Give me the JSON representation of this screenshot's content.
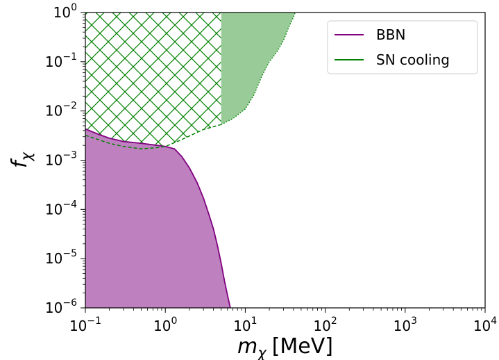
{
  "chart_data": {
    "type": "area",
    "x_scale": "log",
    "y_scale": "log",
    "xlim": [
      0.1,
      10000
    ],
    "ylim": [
      1e-06,
      1
    ],
    "xlabel": {
      "symbol": "m",
      "subscript": "χ",
      "unit": "[MeV]"
    },
    "ylabel": {
      "symbol": "f",
      "subscript": "χ"
    },
    "x_ticks": [
      {
        "value": 0.1,
        "base": "10",
        "exp": "−1"
      },
      {
        "value": 1,
        "base": "10",
        "exp": "0"
      },
      {
        "value": 10,
        "base": "10",
        "exp": "1"
      },
      {
        "value": 100,
        "base": "10",
        "exp": "2"
      },
      {
        "value": 1000,
        "base": "10",
        "exp": "3"
      },
      {
        "value": 10000,
        "base": "10",
        "exp": "4"
      }
    ],
    "y_ticks": [
      {
        "value": 1e-06,
        "base": "10",
        "exp": "−6"
      },
      {
        "value": 1e-05,
        "base": "10",
        "exp": "−5"
      },
      {
        "value": 0.0001,
        "base": "10",
        "exp": "−4"
      },
      {
        "value": 0.001,
        "base": "10",
        "exp": "−3"
      },
      {
        "value": 0.01,
        "base": "10",
        "exp": "−2"
      },
      {
        "value": 0.1,
        "base": "10",
        "exp": "−1"
      },
      {
        "value": 1,
        "base": "10",
        "exp": "0"
      }
    ],
    "grid": false,
    "legend_position": "top-right",
    "series": [
      {
        "name": "BBN",
        "color": "#800080",
        "fill_color": "#bf80bf",
        "style": "solid line, filled below",
        "points": [
          [
            0.1,
            0.0043
          ],
          [
            0.15,
            0.0033
          ],
          [
            0.2,
            0.0028
          ],
          [
            0.3,
            0.0024
          ],
          [
            0.5,
            0.0022
          ],
          [
            0.8,
            0.002
          ],
          [
            1.0,
            0.0019
          ],
          [
            1.3,
            0.0017
          ],
          [
            1.6,
            0.0012
          ],
          [
            2.0,
            0.0007
          ],
          [
            2.5,
            0.00035
          ],
          [
            3.0,
            0.00017
          ],
          [
            3.5,
            8e-05
          ],
          [
            4.0,
            4e-05
          ],
          [
            4.5,
            1.8e-05
          ],
          [
            5.0,
            8e-06
          ],
          [
            5.5,
            3.5e-06
          ],
          [
            6.0,
            1.8e-06
          ],
          [
            6.5,
            1e-06
          ]
        ]
      },
      {
        "name": "SN cooling",
        "color": "#008000",
        "fill_color": "#98cb98",
        "hatch": "crosshatch",
        "lower_bound_dashed": [
          [
            0.1,
            0.0032
          ],
          [
            0.2,
            0.0022
          ],
          [
            0.3,
            0.0019
          ],
          [
            0.5,
            0.0017
          ],
          [
            0.8,
            0.0018
          ],
          [
            1.0,
            0.0019
          ],
          [
            1.5,
            0.0025
          ],
          [
            2.0,
            0.0031
          ],
          [
            3.0,
            0.0042
          ],
          [
            5.0,
            0.0053
          ]
        ],
        "upper_bound_dotted": [
          [
            5.0,
            0.0053
          ],
          [
            7.0,
            0.007
          ],
          [
            10.0,
            0.011
          ],
          [
            13.0,
            0.022
          ],
          [
            16.0,
            0.05
          ],
          [
            20.0,
            0.1
          ],
          [
            25.0,
            0.16
          ],
          [
            30.0,
            0.27
          ],
          [
            35.0,
            0.5
          ],
          [
            40.0,
            0.8
          ],
          [
            42.0,
            1.0
          ]
        ],
        "hatched_x_range": [
          0.1,
          5.0
        ],
        "filled_x_range": [
          5.0,
          42.0
        ]
      }
    ]
  }
}
